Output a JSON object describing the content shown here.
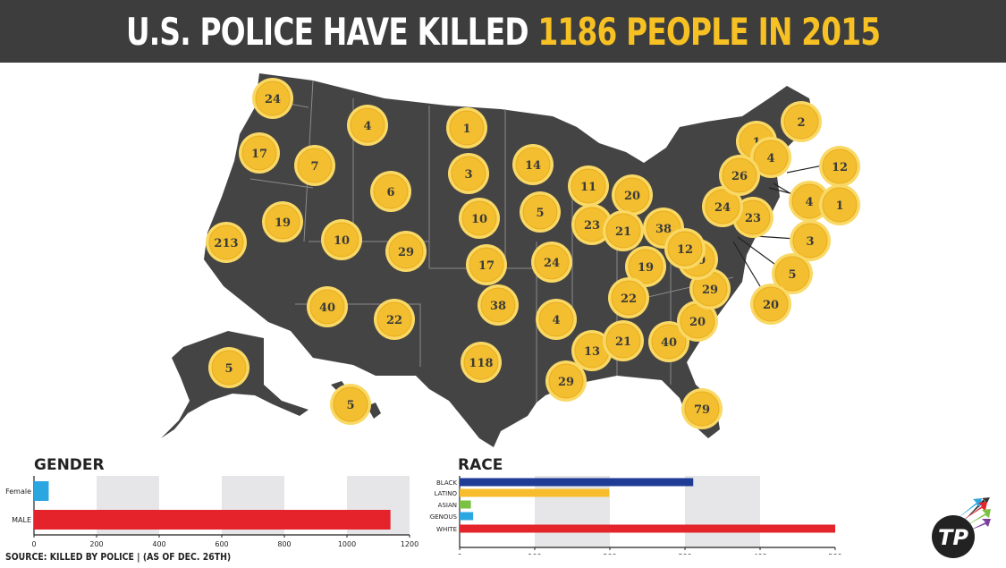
{
  "header": {
    "title_white": "U.S. POLICE HAVE KILLED ",
    "title_yellow": "1186 PEOPLE IN 2015"
  },
  "source": "SOURCE: KILLED BY POLICE  | (AS OF DEC. 26TH)",
  "logo_text": "TP",
  "colors": {
    "map": "#444444",
    "bubble": "#f3be2f",
    "bubble_ring": "#f9d865",
    "header_bg": "#3d3d3d",
    "title_accent": "#f7c124"
  },
  "chart_data": [
    {
      "type": "map",
      "title": "U.S. POLICE HAVE KILLED 1186 PEOPLE IN 2015",
      "states": [
        {
          "state": "WA",
          "value": 24
        },
        {
          "state": "OR",
          "value": 17
        },
        {
          "state": "CA",
          "value": 213
        },
        {
          "state": "ID",
          "value": 7
        },
        {
          "state": "NV",
          "value": 19
        },
        {
          "state": "MT",
          "value": 4
        },
        {
          "state": "WY",
          "value": 6
        },
        {
          "state": "UT",
          "value": 10
        },
        {
          "state": "AZ",
          "value": 40
        },
        {
          "state": "CO",
          "value": 29
        },
        {
          "state": "NM",
          "value": 22
        },
        {
          "state": "ND",
          "value": 1
        },
        {
          "state": "SD",
          "value": 3
        },
        {
          "state": "NE",
          "value": 10
        },
        {
          "state": "KS",
          "value": 17
        },
        {
          "state": "OK",
          "value": 38
        },
        {
          "state": "TX",
          "value": 118
        },
        {
          "state": "MN",
          "value": 14
        },
        {
          "state": "IA",
          "value": 5
        },
        {
          "state": "MO",
          "value": 24
        },
        {
          "state": "AR",
          "value": 4
        },
        {
          "state": "LA",
          "value": 29
        },
        {
          "state": "WI",
          "value": 11
        },
        {
          "state": "IL",
          "value": 23
        },
        {
          "state": "MI",
          "value": 20
        },
        {
          "state": "IN",
          "value": 21
        },
        {
          "state": "OH",
          "value": 38
        },
        {
          "state": "KY",
          "value": 19
        },
        {
          "state": "TN",
          "value": 22
        },
        {
          "state": "MS",
          "value": 13
        },
        {
          "state": "AL",
          "value": 21
        },
        {
          "state": "GA",
          "value": 40
        },
        {
          "state": "FL",
          "value": 79
        },
        {
          "state": "SC",
          "value": 20
        },
        {
          "state": "NC",
          "value": 29
        },
        {
          "state": "VA",
          "value": 20
        },
        {
          "state": "WV",
          "value": 12
        },
        {
          "state": "PA",
          "value": 23
        },
        {
          "state": "NY",
          "value": 24
        },
        {
          "state": "VT",
          "value": 1
        },
        {
          "state": "NH",
          "value": 4
        },
        {
          "state": "ME",
          "value": 2
        },
        {
          "state": "MA",
          "value": 26
        },
        {
          "state": "CT",
          "value": 12
        },
        {
          "state": "RI",
          "value": 4
        },
        {
          "state": "NJ",
          "value": 1
        },
        {
          "state": "DE",
          "value": 3
        },
        {
          "state": "MD",
          "value": 5
        },
        {
          "state": "DC",
          "value": 20
        },
        {
          "state": "AK",
          "value": 5
        },
        {
          "state": "HI",
          "value": 5
        }
      ]
    },
    {
      "type": "bar",
      "orientation": "horizontal",
      "title": "GENDER",
      "categories": [
        "Female",
        "MALE"
      ],
      "values": [
        47,
        1139
      ],
      "colors": [
        "#2aa6e0",
        "#e4232b"
      ],
      "xlim": [
        0,
        1200
      ],
      "xticks": [
        "0",
        "200",
        "400",
        "600",
        "800",
        "1000",
        "1200"
      ]
    },
    {
      "type": "bar",
      "orientation": "horizontal",
      "title": "RACE",
      "categories": [
        "BLACK",
        "LATINO",
        "ASIAN",
        "INDIGENOUS",
        "WHITE"
      ],
      "values": [
        311,
        199,
        15,
        18,
        500
      ],
      "colors": [
        "#1f3c95",
        "#f7bd2d",
        "#7cc242",
        "#2aa6e0",
        "#e4232b"
      ],
      "xlim": [
        0,
        500
      ],
      "xticks": [
        "0",
        "100",
        "200",
        "300",
        "400",
        "500"
      ]
    }
  ]
}
